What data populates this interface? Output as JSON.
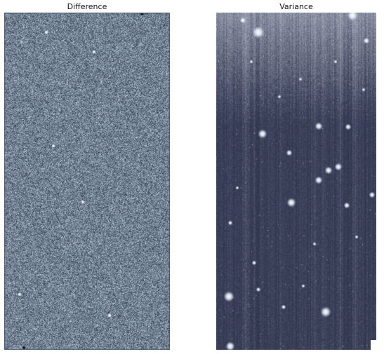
{
  "panels": [
    {
      "title": "Difference",
      "colormap": {
        "dark": "#1b2230",
        "mid": "#6f7f93",
        "light": "#dbe6f4"
      }
    },
    {
      "title": "Variance",
      "colormap": {
        "dark": "#1b2033",
        "mid": "#3f455e",
        "light": "#f3f7ff"
      }
    }
  ]
}
